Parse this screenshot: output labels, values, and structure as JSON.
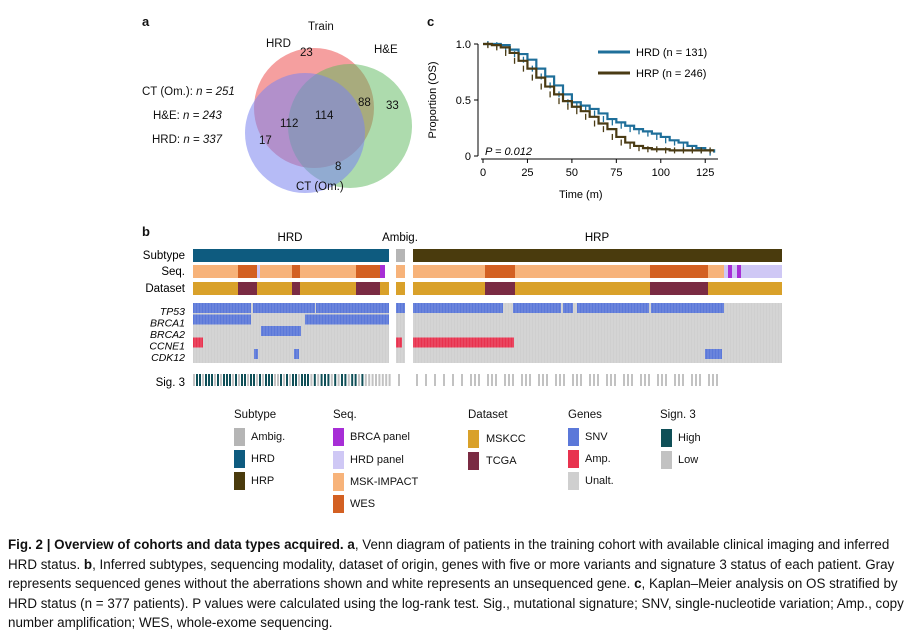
{
  "panel_labels": {
    "a": "a",
    "b": "b",
    "c": "c"
  },
  "venn": {
    "title": "Train",
    "sets": [
      {
        "name": "HRD",
        "color": "#f06b6b"
      },
      {
        "name": "H&E",
        "color": "#5cb85c"
      },
      {
        "name": "CT (Om.)",
        "color": "#7a84ef"
      }
    ],
    "regions": {
      "hrd_only": "23",
      "he_only": "33",
      "ct_only": "17",
      "hrd_he": "88",
      "hrd_ct": "112",
      "he_ct": "8",
      "all": "114"
    },
    "totals": [
      {
        "label": "CT (Om.): ",
        "n": "n = 251"
      },
      {
        "label": "H&E: ",
        "n": "n = 243"
      },
      {
        "label": "HRD: ",
        "n": "n = 337"
      }
    ]
  },
  "km": {
    "ylabel": "Proportion (OS)",
    "xlabel": "Time (m)",
    "yticks": [
      "0",
      "0.5",
      "1.0"
    ],
    "xticks": [
      "0",
      "25",
      "50",
      "75",
      "100",
      "125"
    ],
    "pvalue": "P = 0.012",
    "legend": [
      {
        "name": "HRD (n = 131)",
        "color": "#1f6f9a"
      },
      {
        "name": "HRP (n = 246)",
        "color": "#4a3b14"
      }
    ]
  },
  "chart_data": {
    "type": "line",
    "xlabel": "Time (m)",
    "ylabel": "Proportion (OS)",
    "xlim": [
      0,
      135
    ],
    "ylim": [
      0,
      1
    ],
    "series": [
      {
        "name": "HRD (n = 131)",
        "x": [
          0,
          5,
          10,
          15,
          20,
          25,
          30,
          35,
          40,
          45,
          50,
          55,
          60,
          65,
          70,
          75,
          80,
          85,
          90,
          95,
          100,
          105,
          110,
          115,
          120,
          125,
          130
        ],
        "values": [
          1.0,
          1.0,
          0.99,
          0.95,
          0.91,
          0.86,
          0.78,
          0.71,
          0.63,
          0.55,
          0.48,
          0.45,
          0.42,
          0.38,
          0.33,
          0.3,
          0.27,
          0.24,
          0.22,
          0.2,
          0.17,
          0.14,
          0.12,
          0.09,
          0.07,
          0.05,
          0.03
        ]
      },
      {
        "name": "HRP (n = 246)",
        "x": [
          0,
          5,
          10,
          15,
          20,
          25,
          30,
          35,
          40,
          45,
          50,
          55,
          60,
          65,
          70,
          75,
          80,
          85,
          90,
          95,
          100,
          105,
          110,
          115,
          120,
          125,
          130
        ],
        "values": [
          1.0,
          0.99,
          0.97,
          0.92,
          0.85,
          0.78,
          0.7,
          0.62,
          0.55,
          0.49,
          0.44,
          0.4,
          0.35,
          0.29,
          0.24,
          0.17,
          0.12,
          0.09,
          0.07,
          0.06,
          0.06,
          0.05,
          0.05,
          0.05,
          0.05,
          0.05,
          0.05
        ]
      }
    ]
  },
  "oncoprint": {
    "groups": {
      "hrd": "HRD",
      "ambig": "Ambig.",
      "hrp": "HRP"
    },
    "rows": {
      "subtype": "Subtype",
      "seq": "Seq.",
      "dataset": "Dataset",
      "sig3": "Sig. 3"
    },
    "genes": [
      "TP53",
      "BRCA1",
      "BRCA2",
      "CCNE1",
      "CDK12"
    ],
    "colors": {
      "hrd": "#0e5b7f",
      "hrp": "#4a3b0d",
      "ambig": "#b5b5b5",
      "msk_impact": "#f7b37a",
      "wes": "#d36022",
      "brca_panel": "#a72ed6",
      "hrd_panel": "#cfc8f5",
      "mskcc": "#d9a12a",
      "tcga": "#7a2b43",
      "snv": "#5b78d9",
      "amp": "#e8334f",
      "unalt": "#cfcfcf",
      "high": "#0f4f57",
      "low": "#c2c2c2"
    }
  },
  "legend": {
    "subtype": {
      "title": "Subtype",
      "items": [
        "Ambig.",
        "HRD",
        "HRP"
      ]
    },
    "seq": {
      "title": "Seq.",
      "items": [
        "BRCA panel",
        "HRD panel",
        "MSK-IMPACT",
        "WES"
      ]
    },
    "dataset": {
      "title": "Dataset",
      "items": [
        "MSKCC",
        "TCGA"
      ]
    },
    "genes": {
      "title": "Genes",
      "items": [
        "SNV",
        "Amp.",
        "Unalt."
      ]
    },
    "sig3": {
      "title": "Sign. 3",
      "items": [
        "High",
        "Low"
      ]
    }
  },
  "caption": {
    "figure": "Fig. 2 | Overview of cohorts and data types acquired.",
    "a_label": "a",
    "a_text": ", Venn diagram of patients in the training cohort with available clinical imaging and inferred HRD status.",
    "b_label": "b",
    "b_text": ", Inferred subtypes, sequencing modality, dataset of origin, genes with five or more variants and signature 3 status of each patient. Gray represents sequenced genes without the aberrations shown and white represents an unsequenced gene.",
    "c_label": "c",
    "c_text": ", Kaplan–Meier analysis on OS stratified by HRD status (n = 377 patients). P values were calculated using the log-rank test. Sig., mutational signature; SNV, single-nucleotide variation; Amp., copy number amplification; WES, whole-exome sequencing."
  }
}
